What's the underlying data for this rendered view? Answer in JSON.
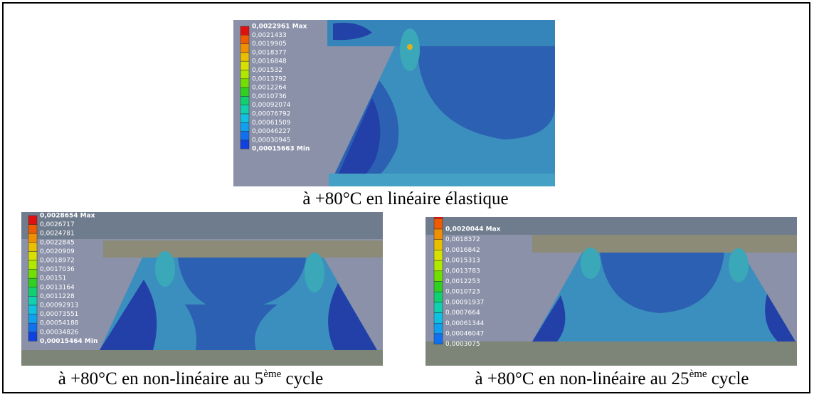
{
  "panels": [
    {
      "legend": [
        "0,0022961 Max",
        "0,0021433",
        "0,0019905",
        "0,0018377",
        "0,0016848",
        "0,001532",
        "0,0013792",
        "0,0012264",
        "0,0010736",
        "0,00092074",
        "0,00076792",
        "0,00061509",
        "0,00046227",
        "0,00030945",
        "0,00015663 Min"
      ],
      "caption": {
        "text": "à +80°C en linéaire élastique"
      }
    },
    {
      "legend": [
        "0,0028654 Max",
        "0,0026717",
        "0,0024781",
        "0,0022845",
        "0,0020909",
        "0,0018972",
        "0,0017036",
        "0,00151",
        "0,0013164",
        "0,0011228",
        "0,00092913",
        "0,00073551",
        "0,00054188",
        "0,00034826",
        "0,00015464 Min"
      ],
      "caption": {
        "text": "à +80°C en non-linéaire au 5",
        "sup": "ème",
        "tail": " cycle"
      }
    },
    {
      "legend": [
        "0,0020044 Max",
        "0,0018372",
        "0,0016842",
        "0,0015313",
        "0,0013783",
        "0,0012253",
        "0,0010723",
        "0,00091937",
        "0,0007664",
        "0,00061344",
        "0,00046047",
        "0,0003075"
      ],
      "caption": {
        "text": "à +80°C en non-linéaire au 25",
        "sup": "ème",
        "tail": " cycle"
      }
    }
  ]
}
